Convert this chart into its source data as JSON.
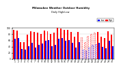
{
  "title": "Milwaukee Weather Outdoor Humidity",
  "subtitle": "Daily High/Low",
  "high_color": "#ff0000",
  "low_color": "#0000ff",
  "background_color": "#ffffff",
  "plot_bg_color": "#ffffff",
  "ylim": [
    0,
    100
  ],
  "ylabel_ticks": [
    0,
    20,
    40,
    60,
    80,
    100
  ],
  "days": [
    "1",
    "2",
    "3",
    "4",
    "5",
    "6",
    "7",
    "8",
    "9",
    "10",
    "11",
    "12",
    "13",
    "14",
    "15",
    "16",
    "17",
    "18",
    "19",
    "20",
    "21",
    "22",
    "23",
    "24",
    "25",
    "26",
    "27",
    "28",
    "29",
    "30"
  ],
  "highs": [
    95,
    92,
    55,
    55,
    78,
    90,
    88,
    85,
    80,
    92,
    90,
    80,
    85,
    100,
    98,
    95,
    95,
    88,
    72,
    88,
    70,
    55,
    75,
    80,
    85,
    88,
    72,
    68,
    90,
    78
  ],
  "lows": [
    65,
    68,
    32,
    30,
    42,
    52,
    38,
    45,
    50,
    58,
    62,
    42,
    45,
    65,
    68,
    58,
    62,
    52,
    38,
    55,
    30,
    28,
    38,
    45,
    48,
    52,
    40,
    35,
    58,
    42
  ],
  "dashed_day_indices": [
    20,
    21,
    22,
    23,
    24
  ],
  "legend_high": "High",
  "legend_low": "Low"
}
